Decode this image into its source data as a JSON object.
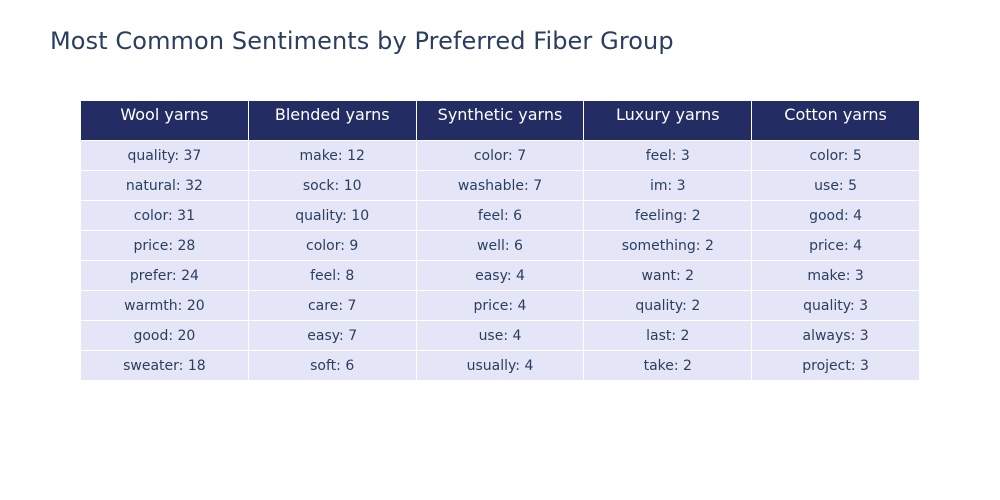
{
  "chart_data": {
    "type": "table",
    "title": "Most Common Sentiments by Preferred Fiber Group",
    "columns": [
      "Wool yarns",
      "Blended yarns",
      "Synthetic yarns",
      "Luxury yarns",
      "Cotton yarns"
    ],
    "rows": [
      [
        "quality: 37",
        "make: 12",
        "color: 7",
        "feel: 3",
        "color: 5"
      ],
      [
        "natural: 32",
        "sock: 10",
        "washable: 7",
        "im: 3",
        "use: 5"
      ],
      [
        "color: 31",
        "quality: 10",
        "feel: 6",
        "feeling: 2",
        "good: 4"
      ],
      [
        "price: 28",
        "color: 9",
        "well: 6",
        "something: 2",
        "price: 4"
      ],
      [
        "prefer: 24",
        "feel: 8",
        "easy: 4",
        "want: 2",
        "make: 3"
      ],
      [
        "warmth: 20",
        "care: 7",
        "price: 4",
        "quality: 2",
        "quality: 3"
      ],
      [
        "good: 20",
        "easy: 7",
        "use: 4",
        "last: 2",
        "always: 3"
      ],
      [
        "sweater: 18",
        "soft: 6",
        "usually: 4",
        "take: 2",
        "project: 3"
      ]
    ],
    "colors": {
      "header_fill": "#232d63",
      "header_text": "#ffffff",
      "cell_fill": "#e4e5f7",
      "cell_text": "#2a3f5f",
      "title_text": "#2a3f5f"
    }
  }
}
